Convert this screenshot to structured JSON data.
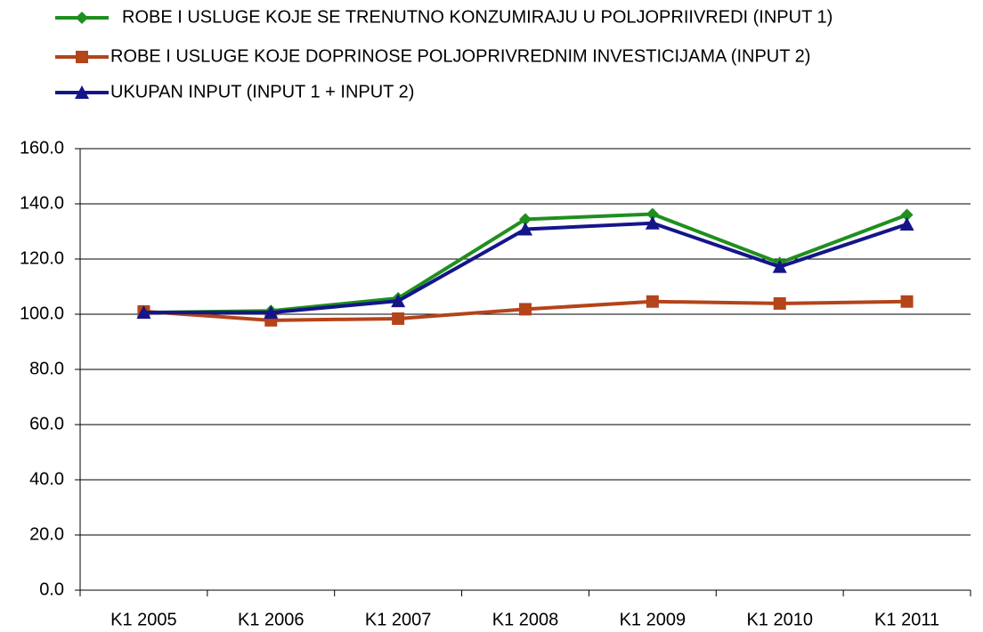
{
  "chart_data": {
    "type": "line",
    "categories": [
      "K1 2005",
      "K1 2006",
      "K1 2007",
      "K1 2008",
      "K1 2009",
      "K1 2010",
      "K1 2011"
    ],
    "series": [
      {
        "name": "ROBE I USLUGE KOJE SE TRENUTNO KONZUMIRAJU U POLJOPRIIVREDI (INPUT 1)",
        "color": "#1f8f1f",
        "marker": "diamond",
        "values": [
          100.6,
          101.2,
          105.8,
          134.4,
          136.3,
          118.6,
          136.0
        ]
      },
      {
        "name": "ROBE I USLUGE KOJE DOPRINOSE POLJOPRIVREDNIM INVESTICIJAMA (INPUT 2)",
        "color": "#b4441a",
        "marker": "square",
        "values": [
          101.0,
          97.8,
          98.4,
          101.8,
          104.6,
          103.9,
          104.6
        ]
      },
      {
        "name": "UKUPAN INPUT (INPUT 1 + INPUT 2)",
        "color": "#15158a",
        "marker": "triangle",
        "values": [
          100.6,
          100.6,
          104.8,
          130.8,
          133.0,
          117.2,
          132.6
        ]
      }
    ],
    "ylim": [
      0,
      160
    ],
    "yticks": [
      {
        "value": 0,
        "label": "0.0"
      },
      {
        "value": 20,
        "label": "20.0"
      },
      {
        "value": 40,
        "label": "40.0"
      },
      {
        "value": 60,
        "label": "60.0"
      },
      {
        "value": 80,
        "label": "80.0"
      },
      {
        "value": 100,
        "label": "100.0"
      },
      {
        "value": 120,
        "label": "120.0"
      },
      {
        "value": 140,
        "label": "140.0"
      },
      {
        "value": 160,
        "label": "160.0"
      }
    ],
    "grid": true,
    "legend": "top"
  }
}
